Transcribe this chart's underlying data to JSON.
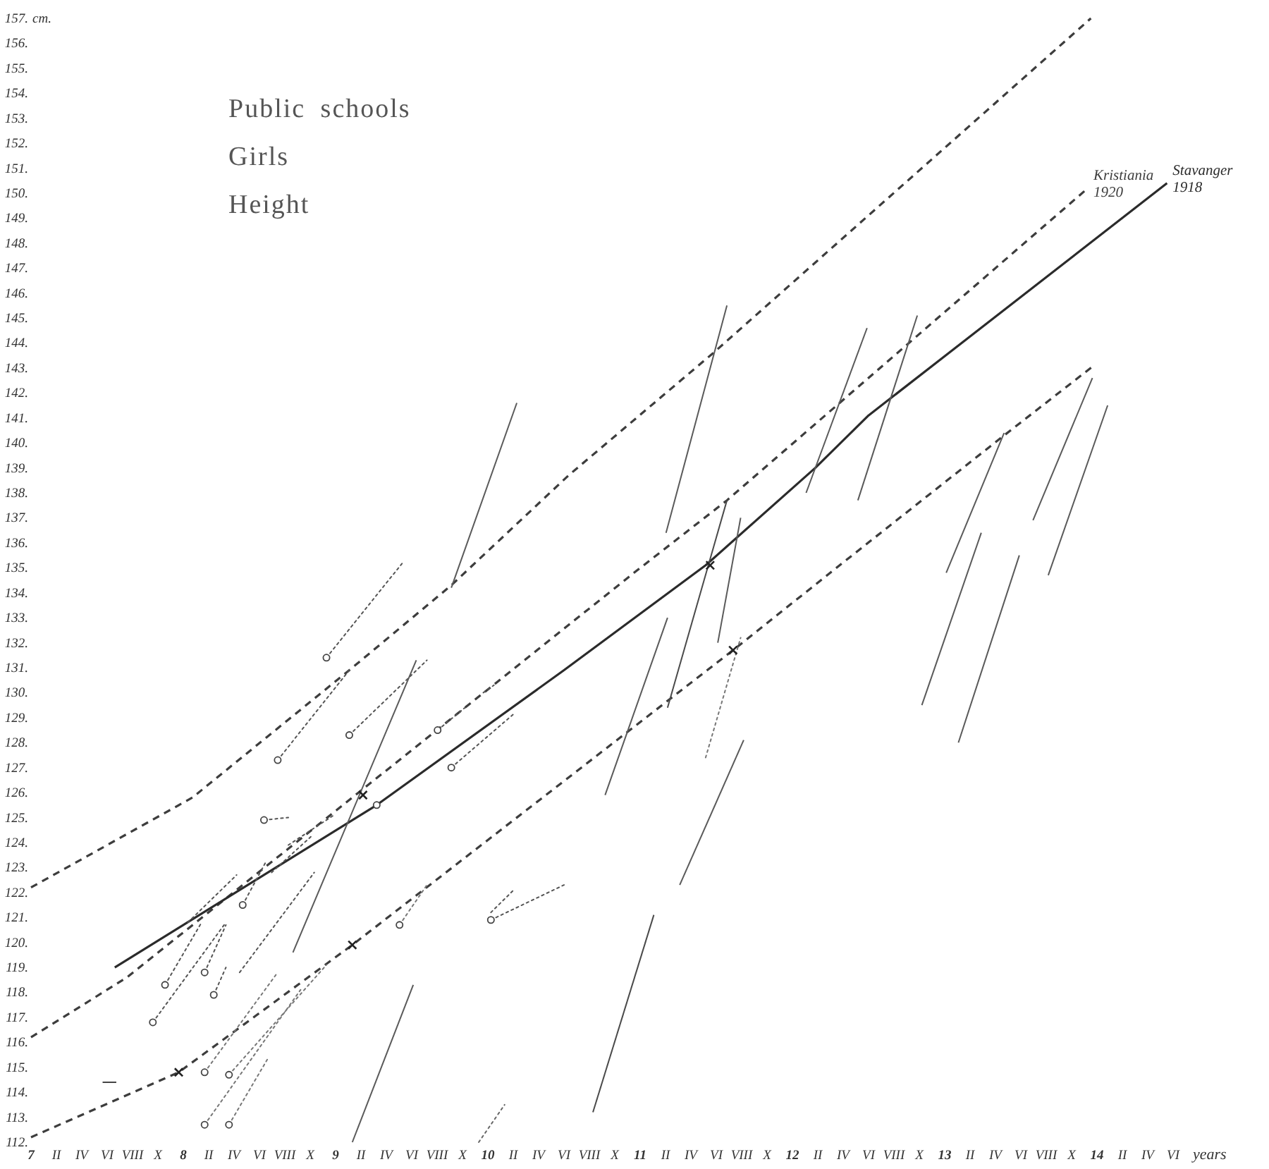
{
  "chart_data": {
    "type": "line",
    "title": "Public schools",
    "subtitle": "Girls",
    "annotations": [
      "Height"
    ],
    "xlabel": "years",
    "ylabel": "cm.",
    "xlim": [
      7,
      14.5
    ],
    "ylim": [
      112,
      157
    ],
    "xticks": [
      {
        "value": 7,
        "label": "7"
      },
      {
        "value": 7.1667,
        "label": "II"
      },
      {
        "value": 7.3333,
        "label": "IV"
      },
      {
        "value": 7.5,
        "label": "VI"
      },
      {
        "value": 7.6667,
        "label": "VIII"
      },
      {
        "value": 7.8333,
        "label": "X"
      },
      {
        "value": 8,
        "label": "8"
      },
      {
        "value": 8.1667,
        "label": "II"
      },
      {
        "value": 8.3333,
        "label": "IV"
      },
      {
        "value": 8.5,
        "label": "VI"
      },
      {
        "value": 8.6667,
        "label": "VIII"
      },
      {
        "value": 8.8333,
        "label": "X"
      },
      {
        "value": 9,
        "label": "9"
      },
      {
        "value": 9.1667,
        "label": "II"
      },
      {
        "value": 9.3333,
        "label": "IV"
      },
      {
        "value": 9.5,
        "label": "VI"
      },
      {
        "value": 9.6667,
        "label": "VIII"
      },
      {
        "value": 9.8333,
        "label": "X"
      },
      {
        "value": 10,
        "label": "10"
      },
      {
        "value": 10.1667,
        "label": "II"
      },
      {
        "value": 10.3333,
        "label": "IV"
      },
      {
        "value": 10.5,
        "label": "VI"
      },
      {
        "value": 10.6667,
        "label": "VIII"
      },
      {
        "value": 10.8333,
        "label": "X"
      },
      {
        "value": 11,
        "label": "11"
      },
      {
        "value": 11.1667,
        "label": "II"
      },
      {
        "value": 11.3333,
        "label": "IV"
      },
      {
        "value": 11.5,
        "label": "VI"
      },
      {
        "value": 11.6667,
        "label": "VIII"
      },
      {
        "value": 11.8333,
        "label": "X"
      },
      {
        "value": 12,
        "label": "12"
      },
      {
        "value": 12.1667,
        "label": "II"
      },
      {
        "value": 12.3333,
        "label": "IV"
      },
      {
        "value": 12.5,
        "label": "VI"
      },
      {
        "value": 12.6667,
        "label": "VIII"
      },
      {
        "value": 12.8333,
        "label": "X"
      },
      {
        "value": 13,
        "label": "13"
      },
      {
        "value": 13.1667,
        "label": "II"
      },
      {
        "value": 13.3333,
        "label": "IV"
      },
      {
        "value": 13.5,
        "label": "VI"
      },
      {
        "value": 13.6667,
        "label": "VIII"
      },
      {
        "value": 13.8333,
        "label": "X"
      },
      {
        "value": 14,
        "label": "14"
      },
      {
        "value": 14.1667,
        "label": "II"
      },
      {
        "value": 14.3333,
        "label": "IV"
      },
      {
        "value": 14.5,
        "label": "VI"
      }
    ],
    "yticks": [
      {
        "value": 112,
        "label": "112."
      },
      {
        "value": 113,
        "label": "113."
      },
      {
        "value": 114,
        "label": "114."
      },
      {
        "value": 115,
        "label": "115."
      },
      {
        "value": 116,
        "label": "116."
      },
      {
        "value": 117,
        "label": "117."
      },
      {
        "value": 118,
        "label": "118."
      },
      {
        "value": 119,
        "label": "119."
      },
      {
        "value": 120,
        "label": "120."
      },
      {
        "value": 121,
        "label": "121."
      },
      {
        "value": 122,
        "label": "122."
      },
      {
        "value": 123,
        "label": "123."
      },
      {
        "value": 124,
        "label": "124."
      },
      {
        "value": 125,
        "label": "125."
      },
      {
        "value": 126,
        "label": "126."
      },
      {
        "value": 127,
        "label": "127."
      },
      {
        "value": 128,
        "label": "128."
      },
      {
        "value": 129,
        "label": "129."
      },
      {
        "value": 130,
        "label": "130."
      },
      {
        "value": 131,
        "label": "131."
      },
      {
        "value": 132,
        "label": "132."
      },
      {
        "value": 133,
        "label": "133."
      },
      {
        "value": 134,
        "label": "134."
      },
      {
        "value": 135,
        "label": "135."
      },
      {
        "value": 136,
        "label": "136."
      },
      {
        "value": 137,
        "label": "137."
      },
      {
        "value": 138,
        "label": "138."
      },
      {
        "value": 139,
        "label": "139."
      },
      {
        "value": 140,
        "label": "140."
      },
      {
        "value": 141,
        "label": "141."
      },
      {
        "value": 142,
        "label": "142."
      },
      {
        "value": 143,
        "label": "143."
      },
      {
        "value": 144,
        "label": "144."
      },
      {
        "value": 145,
        "label": "145."
      },
      {
        "value": 146,
        "label": "146."
      },
      {
        "value": 147,
        "label": "147."
      },
      {
        "value": 148,
        "label": "148."
      },
      {
        "value": 149,
        "label": "149."
      },
      {
        "value": 150,
        "label": "150."
      },
      {
        "value": 151,
        "label": "151."
      },
      {
        "value": 152,
        "label": "152."
      },
      {
        "value": 153,
        "label": "153."
      },
      {
        "value": 154,
        "label": "154."
      },
      {
        "value": 155,
        "label": "155."
      },
      {
        "value": 156,
        "label": "156."
      },
      {
        "value": 157,
        "label": "157."
      }
    ],
    "series": [
      {
        "color": "#3d3d3d",
        "line_style": "dashed",
        "x": [
          7,
          8.06,
          9.11,
          9.76,
          10.53,
          11.48,
          13.96
        ],
        "values": [
          122.2,
          125.8,
          131.0,
          134.3,
          138.7,
          143.6,
          157.0
        ]
      },
      {
        "name": "Kristiania 1920",
        "color": "#3d3d3d",
        "line_style": "dashed",
        "x": [
          7,
          7.63,
          10.96,
          11.57,
          12.31,
          13.94
        ],
        "values": [
          116.2,
          118.6,
          134.8,
          137.7,
          141.6,
          150.2
        ]
      },
      {
        "color": "#3d3d3d",
        "line_style": "dashed",
        "x": [
          7,
          7.97,
          9.11,
          11.61,
          12.31,
          13.39,
          13.98
        ],
        "values": [
          112.2,
          114.8,
          119.9,
          131.7,
          135.1,
          140.3,
          143.1
        ]
      },
      {
        "name": "Stavanger 1918",
        "color": "#2b2b2b",
        "line_style": "solid",
        "x": [
          7.55,
          9.27,
          10.5,
          11.43,
          12.15,
          12.5,
          14.46
        ],
        "values": [
          119.0,
          125.5,
          130.9,
          135.1,
          139.0,
          141.1,
          150.4
        ]
      },
      {
        "color": "#5a5a5a",
        "line_style": "solid",
        "x": [
          9.76,
          10.19
        ],
        "values": [
          134.2,
          141.6
        ]
      },
      {
        "color": "#5a5a5a",
        "line_style": "solid",
        "x": [
          11.17,
          11.57
        ],
        "values": [
          136.4,
          145.5
        ]
      },
      {
        "color": "#5a5a5a",
        "line_style": "solid",
        "x": [
          12.09,
          12.49
        ],
        "values": [
          138.0,
          144.6
        ]
      },
      {
        "color": "#5a5a5a",
        "line_style": "solid",
        "x": [
          12.43,
          12.82
        ],
        "values": [
          137.7,
          145.1
        ]
      },
      {
        "color": "#5a5a5a",
        "line_style": "solid",
        "x": [
          13.01,
          13.39
        ],
        "values": [
          134.8,
          140.4
        ]
      },
      {
        "color": "#5a5a5a",
        "line_style": "solid",
        "x": [
          13.58,
          13.97
        ],
        "values": [
          136.9,
          142.6
        ]
      },
      {
        "color": "#5a5a5a",
        "line_style": "solid",
        "x": [
          13.68,
          14.07
        ],
        "values": [
          134.7,
          141.5
        ]
      },
      {
        "color": "#5a5a5a",
        "line_style": "solid",
        "x": [
          12.85,
          13.24
        ],
        "values": [
          129.5,
          136.4
        ]
      },
      {
        "color": "#5a5a5a",
        "line_style": "solid",
        "x": [
          13.09,
          13.49
        ],
        "values": [
          128.0,
          135.5
        ]
      },
      {
        "color": "#5a5a5a",
        "line_style": "solid",
        "x": [
          10.77,
          11.18
        ],
        "values": [
          125.9,
          133.0
        ]
      },
      {
        "color": "#4a4a4a",
        "line_style": "solid",
        "x": [
          11.18,
          11.57
        ],
        "values": [
          129.4,
          137.7
        ]
      },
      {
        "color": "#5a5a5a",
        "line_style": "solid",
        "x": [
          11.51,
          11.66
        ],
        "values": [
          132.0,
          137.0
        ]
      },
      {
        "color": "#5a5a5a",
        "line_style": "solid",
        "x": [
          11.26,
          11.68
        ],
        "values": [
          122.3,
          128.1
        ]
      },
      {
        "color": "#4a4a4a",
        "line_style": "solid",
        "x": [
          10.69,
          11.09
        ],
        "values": [
          113.2,
          121.1
        ]
      },
      {
        "color": "#5a5a5a",
        "line_style": "solid",
        "x": [
          9.11,
          9.51
        ],
        "values": [
          112.0,
          118.3
        ]
      },
      {
        "color": "#5a5a5a",
        "line_style": "solid",
        "x": [
          8.72,
          9.53
        ],
        "values": [
          119.6,
          131.3
        ]
      },
      {
        "color": "#777777",
        "line_style": "dotted",
        "x": [
          11.43,
          11.66
        ],
        "values": [
          127.4,
          132.2
        ]
      },
      {
        "color": "#666666",
        "line_style": "dotted",
        "x": [
          9.94,
          10.11
        ],
        "values": [
          112.0,
          113.5
        ]
      },
      {
        "color": "#555555",
        "line_style": "dotted",
        "x": [
          8.94,
          9.44
        ],
        "values": [
          131.4,
          135.2
        ]
      },
      {
        "color": "#555555",
        "line_style": "dotted",
        "x": [
          8.62,
          9.09
        ],
        "values": [
          127.3,
          130.9
        ]
      },
      {
        "color": "#555555",
        "line_style": "dotted",
        "x": [
          9.09,
          9.6
        ],
        "values": [
          128.3,
          131.3
        ]
      },
      {
        "color": "#555555",
        "line_style": "dotted",
        "x": [
          8.53,
          8.69
        ],
        "values": [
          124.9,
          125.0
        ]
      },
      {
        "color": "#555555",
        "line_style": "dotted",
        "x": [
          9.67,
          9.85
        ],
        "values": [
          128.5,
          129.4
        ]
      },
      {
        "color": "#555555",
        "line_style": "dotted",
        "x": [
          9.97,
          10.04
        ],
        "values": [
          130.0,
          130.3
        ]
      },
      {
        "color": "#555555",
        "line_style": "dotted",
        "x": [
          9.76,
          10.18
        ],
        "values": [
          127.0,
          129.2
        ]
      },
      {
        "color": "#555555",
        "line_style": "dotted",
        "x": [
          10.02,
          10.5
        ],
        "values": [
          120.9,
          122.3
        ]
      },
      {
        "color": "#555555",
        "line_style": "dotted",
        "x": [
          10.02,
          10.17
        ],
        "values": [
          121.2,
          122.1
        ]
      },
      {
        "color": "#555555",
        "line_style": "dotted",
        "x": [
          7.8,
          8.28
        ],
        "values": [
          116.8,
          120.8
        ]
      },
      {
        "color": "#555555",
        "line_style": "dotted",
        "x": [
          7.88,
          8.12
        ],
        "values": [
          118.3,
          120.8
        ]
      },
      {
        "color": "#555555",
        "line_style": "dotted",
        "x": [
          8.14,
          8.28
        ],
        "values": [
          118.8,
          120.7
        ]
      },
      {
        "color": "#555555",
        "line_style": "dotted",
        "x": [
          8.2,
          8.28
        ],
        "values": [
          117.9,
          119.0
        ]
      },
      {
        "color": "#555555",
        "line_style": "dotted",
        "x": [
          8.37,
          8.86
        ],
        "values": [
          118.8,
          122.8
        ]
      },
      {
        "color": "#555555",
        "line_style": "dotted",
        "x": [
          8.03,
          8.35
        ],
        "values": [
          120.8,
          122.7
        ]
      },
      {
        "color": "#555555",
        "line_style": "dotted",
        "x": [
          8.39,
          8.54
        ],
        "values": [
          121.5,
          123.2
        ]
      },
      {
        "color": "#555555",
        "line_style": "dotted",
        "x": [
          8.58,
          8.85
        ],
        "values": [
          122.8,
          124.3
        ]
      },
      {
        "color": "#555555",
        "line_style": "dotted",
        "x": [
          8.69,
          8.99
        ],
        "values": [
          123.9,
          125.1
        ]
      },
      {
        "color": "#777777",
        "line_style": "dotted",
        "x": [
          8.14,
          8.62
        ],
        "values": [
          114.8,
          118.8
        ]
      },
      {
        "color": "#777777",
        "line_style": "dotted",
        "x": [
          8.3,
          8.94
        ],
        "values": [
          114.7,
          119.1
        ]
      },
      {
        "color": "#777777",
        "line_style": "dotted",
        "x": [
          8.14,
          8.77
        ],
        "values": [
          112.7,
          118.1
        ]
      },
      {
        "color": "#777777",
        "line_style": "dotted",
        "x": [
          8.3,
          8.56
        ],
        "values": [
          112.7,
          115.4
        ]
      },
      {
        "color": "#777777",
        "line_style": "dotted",
        "x": [
          9.42,
          9.6
        ],
        "values": [
          120.7,
          122.3
        ]
      },
      {
        "color": "#444444",
        "line_style": "solid",
        "x": [
          7.47,
          7.56
        ],
        "values": [
          114.4,
          114.4
        ]
      },
      {
        "type": "scatter",
        "marker": "circle",
        "color": "#444444",
        "x": [
          8.94,
          8.62,
          9.09,
          8.53,
          9.67,
          9.76,
          10.02,
          7.8,
          7.88,
          8.14,
          8.2,
          8.39,
          8.14,
          8.3,
          8.14,
          8.3,
          9.42,
          9.27
        ],
        "values": [
          131.4,
          127.3,
          128.3,
          124.9,
          128.5,
          127.0,
          120.9,
          116.8,
          118.3,
          118.8,
          117.9,
          121.5,
          114.8,
          114.7,
          112.7,
          112.7,
          120.7,
          125.5
        ]
      },
      {
        "type": "scatter",
        "marker": "cross",
        "color": "#222222",
        "x": [
          9.18,
          7.97,
          11.61,
          11.46,
          9.11
        ],
        "values": [
          125.9,
          114.8,
          131.7,
          135.1,
          119.9
        ]
      }
    ]
  }
}
